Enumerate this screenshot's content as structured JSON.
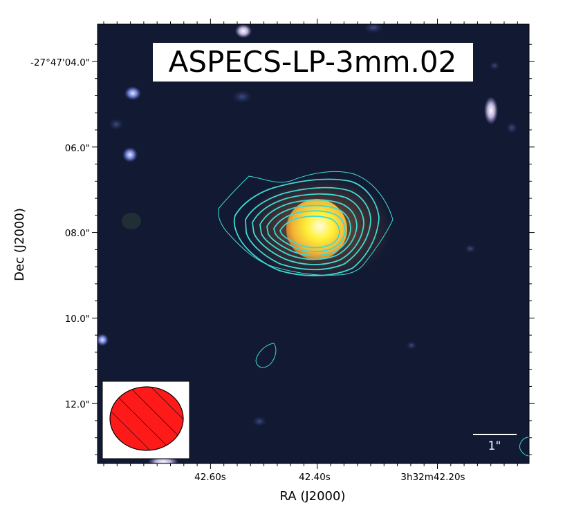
{
  "title": "ASPECS-LP-3mm.02",
  "xlabel": "RA (J2000)",
  "ylabel": "Dec (J2000)",
  "x_ticks": [
    "42.60s",
    "42.40s",
    "3h32m42.20s"
  ],
  "y_ticks": [
    "-27°47'04.0\"",
    "06.0\"",
    "08.0\"",
    "10.0\"",
    "12.0\""
  ],
  "scalebar_label": "1\"",
  "colors": {
    "background": "#121a33",
    "contour": "#3fd9d2",
    "beam_fill": "#ff1a1a",
    "source_core": "#fff23a",
    "source_edge": "#e08a2a"
  }
}
